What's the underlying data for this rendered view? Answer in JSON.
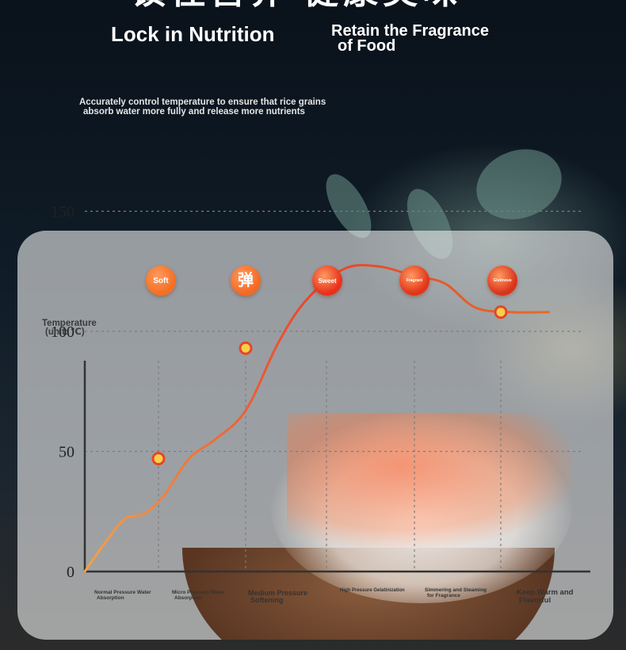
{
  "header": {
    "title_cut": "锁住营养 健康美味",
    "left_heading": "Lock in Nutrition",
    "right_heading_line1": "Retain the Fragrance",
    "right_heading_line2": "of Food"
  },
  "description": {
    "line1": "Accurately control temperature to ensure that rice grains",
    "line2": "absorb water more fully and release more nutrients"
  },
  "badges": [
    {
      "label": "Soft",
      "color": "#f37022"
    },
    {
      "label": "弹",
      "color": "#f36a22"
    },
    {
      "label": "Sweet",
      "color": "#e8301a"
    },
    {
      "label": "Fragrant",
      "color": "#e23418"
    },
    {
      "label": "Glutinous",
      "color": "#d8331a"
    }
  ],
  "colors": {
    "curve": "#e8442a",
    "marker_fill": "#f6d04a",
    "marker_ring": "#e8442a",
    "axis": "#333333",
    "grid": "#7d7d7d"
  },
  "chart_data": {
    "type": "line",
    "ylabel_line1": "Temperature",
    "ylabel_line2": "(unit: ℃)",
    "ylim": [
      0,
      175
    ],
    "yticks": [
      0,
      50,
      100,
      150
    ],
    "grid": "dashed",
    "categories": [
      "Normal Pressure Water Absorption",
      "Micro Pressure Water Absorption",
      "Medium Pressure Softening",
      "High Pressure Gelatinization",
      "Simmering and Steaming for Fragrance",
      "Keep Warm and Flavorful"
    ],
    "stage_labels": [
      {
        "line1": "Normal Pressure Water",
        "line2": "Absorption"
      },
      {
        "line1": "Micro Pressure Water",
        "line2": "Absorption"
      },
      {
        "line1": "Medium Pressure",
        "line2": "Softening"
      },
      {
        "line1": "High Pressure Gelatinization",
        "line2": ""
      },
      {
        "line1": "Simmering and Steaming",
        "line2": "for Fragrance"
      },
      {
        "line1": "Keep Warm and",
        "line2": "Flavorful"
      }
    ],
    "markers": [
      {
        "stage": 1,
        "y": 47
      },
      {
        "stage": 2,
        "y": 93
      },
      {
        "stage": 3,
        "y": 122
      },
      {
        "stage": 4,
        "y": 124
      },
      {
        "stage": 5,
        "y": 108
      }
    ],
    "curve": [
      {
        "s": 0,
        "y": 0
      },
      {
        "s": 0.3,
        "y": 13
      },
      {
        "s": 0.55,
        "y": 22
      },
      {
        "s": 0.8,
        "y": 24
      },
      {
        "s": 1.05,
        "y": 31
      },
      {
        "s": 1.35,
        "y": 47
      },
      {
        "s": 1.65,
        "y": 55
      },
      {
        "s": 2.0,
        "y": 67
      },
      {
        "s": 2.4,
        "y": 95
      },
      {
        "s": 2.75,
        "y": 113
      },
      {
        "s": 3.2,
        "y": 126
      },
      {
        "s": 3.6,
        "y": 127
      },
      {
        "s": 4.0,
        "y": 123
      },
      {
        "s": 4.35,
        "y": 120
      },
      {
        "s": 4.7,
        "y": 110
      },
      {
        "s": 5.1,
        "y": 108
      },
      {
        "s": 5.55,
        "y": 108
      }
    ]
  }
}
